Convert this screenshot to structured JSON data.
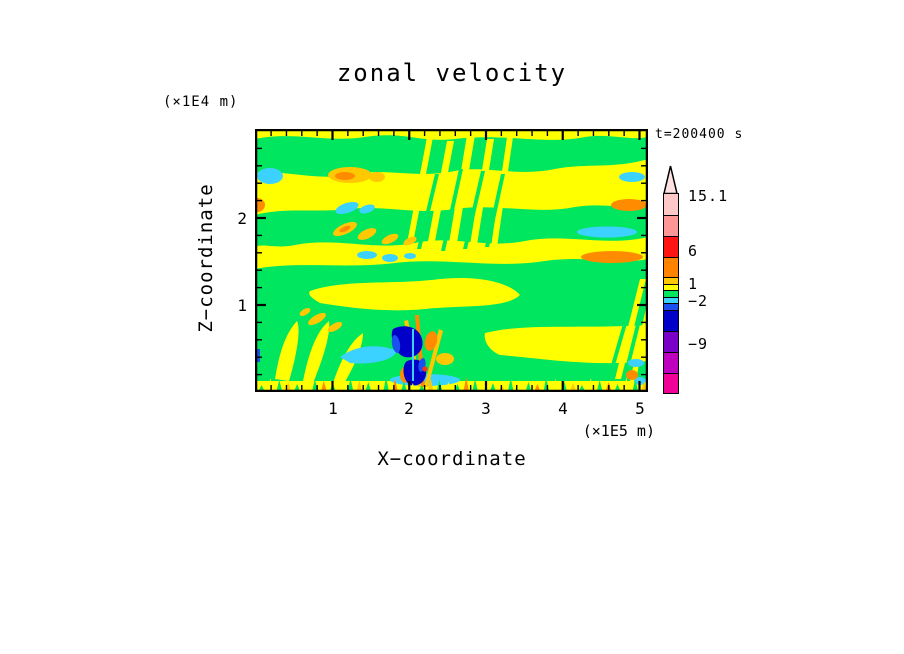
{
  "chart": {
    "title": "zonal velocity",
    "timestamp": "t=200400 s",
    "x_axis": {
      "label": "X−coordinate",
      "unit": "(×1E5 m)",
      "ticks": [
        "1",
        "2",
        "3",
        "4",
        "5"
      ]
    },
    "y_axis": {
      "label": "Z−coordinate",
      "unit": "(×1E4 m)",
      "ticks": [
        "2",
        "1"
      ]
    },
    "colorbar": {
      "labels": [
        "15.1",
        "6",
        "1",
        "−2",
        "−9"
      ]
    }
  },
  "chart_data": {
    "type": "heatmap",
    "subtype": "filled_contour",
    "title": "zonal velocity",
    "annotation": "t=200400 s",
    "xlabel": "X−coordinate",
    "x_unit": "×1E5 m",
    "x_ticks": [
      1,
      2,
      3,
      4,
      5
    ],
    "x_range": [
      0,
      5.1
    ],
    "ylabel": "Z−coordinate",
    "y_unit": "×1E4 m",
    "y_ticks": [
      1,
      2
    ],
    "y_range": [
      0,
      3.05
    ],
    "grid": false,
    "legend_position": "right",
    "colorbar_levels_labeled": [
      15.1,
      6,
      1,
      -2,
      -9
    ],
    "colorbar_colors_top_to_bottom": [
      "#FFC8C8",
      "#FF9696",
      "#FF1414",
      "#FF8200",
      "#FFC800",
      "#FFFF00",
      "#00E65F",
      "#3CD2FF",
      "#1A50F0",
      "#0000C8",
      "#7A00C8",
      "#BE00BE",
      "#F00096"
    ],
    "field_dominant_colors": {
      "positive_band": "#FFFF00",
      "near_zero_band": "#00E65F",
      "weak_negative": "#3CD2FF",
      "moderate_positive": "#FFC800",
      "strong_positive": "#FF8C00",
      "strong_negative": "#0000C8"
    },
    "field_description": "Alternating horizontal yellow/green velocity bands with slanted wave streaks near x=2, orange and cyan pockets, and a strong blue/navy negative anomaly with orange filaments near x=2, z=0.5"
  }
}
